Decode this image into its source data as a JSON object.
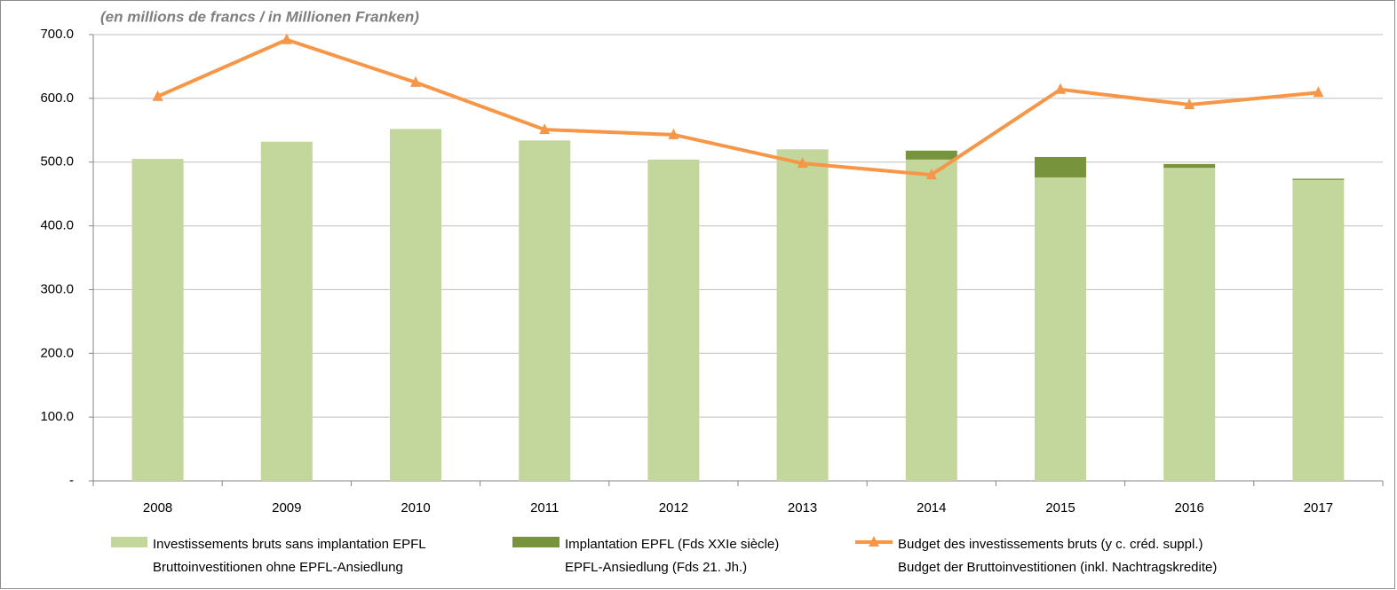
{
  "chart_data": {
    "type": "stacked-bar-line",
    "subtitle": "(en millions de francs / in Millionen Franken)",
    "categories": [
      "2008",
      "2009",
      "2010",
      "2011",
      "2012",
      "2013",
      "2014",
      "2015",
      "2016",
      "2017"
    ],
    "series": [
      {
        "name": "Investissements bruts sans implantation EPFL",
        "name_2": "Bruttoinvestitionen ohne EPFL-Ansiedlung",
        "kind": "bar",
        "color": "#c3d69b",
        "values": [
          505,
          532,
          552,
          534,
          504,
          520,
          504,
          476,
          491,
          472
        ]
      },
      {
        "name": "Implantation EPFL (Fds XXIe siècle)",
        "name_2": "EPFL-Ansiedlung (Fds 21. Jh.)",
        "kind": "bar",
        "color": "#77933c",
        "values": [
          0,
          0,
          0,
          0,
          0,
          0,
          14,
          32,
          6,
          2
        ]
      },
      {
        "name": "Budget des investissements bruts (y c. créd. suppl.)",
        "name_2": "Budget der Bruttoinvestitionen (inkl. Nachtragskredite)",
        "kind": "line",
        "color": "#f79646",
        "values": [
          603,
          692,
          625,
          551,
          543,
          498,
          480,
          614,
          590,
          609
        ]
      }
    ],
    "ylim": [
      0,
      700
    ],
    "yticks": [
      {
        "value": 0,
        "label": "-"
      },
      {
        "value": 100,
        "label": "100.0"
      },
      {
        "value": 200,
        "label": "200.0"
      },
      {
        "value": 300,
        "label": "300.0"
      },
      {
        "value": 400,
        "label": "400.0"
      },
      {
        "value": 500,
        "label": "500.0"
      },
      {
        "value": 600,
        "label": "600.0"
      },
      {
        "value": 700,
        "label": "700.0"
      }
    ],
    "grid": true
  }
}
